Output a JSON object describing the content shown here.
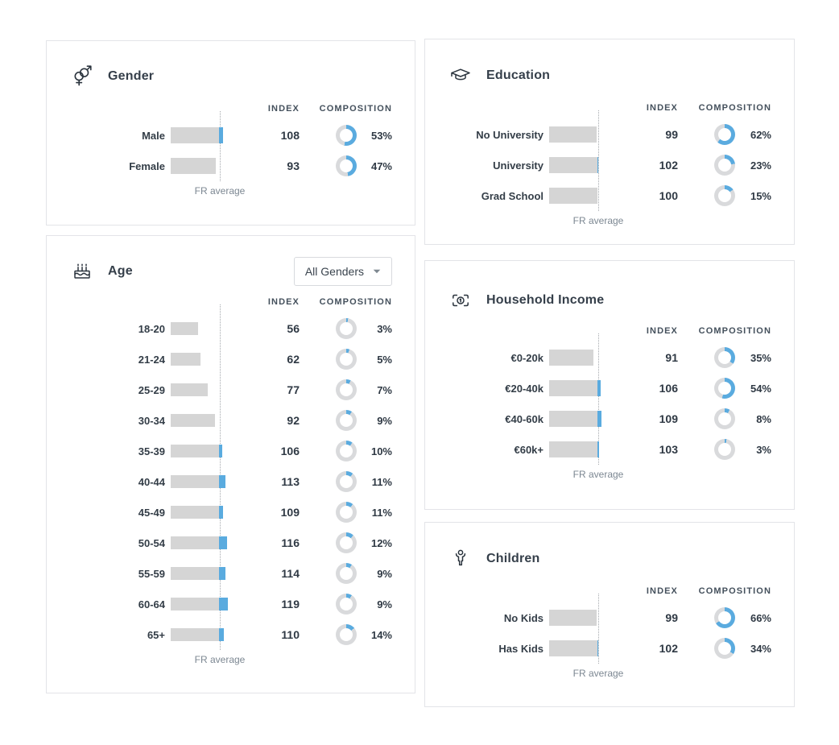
{
  "columns": {
    "index": "INDEX",
    "composition": "COMPOSITION"
  },
  "average_label": "FR average",
  "colors": {
    "accent_blue": "#5aabdf",
    "bar_gray": "#d5d5d5",
    "donut_track": "#d9dadc",
    "title_text": "#353f4a",
    "body_text": "#2f3944",
    "muted_text": "#7c8792",
    "card_border": "#e3e4e8"
  },
  "cards": [
    {
      "id": "gender",
      "title": "Gender",
      "icon": "gender-icon",
      "rows": [
        {
          "label": "Male",
          "index": 108,
          "composition": "53%"
        },
        {
          "label": "Female",
          "index": 93,
          "composition": "47%"
        }
      ]
    },
    {
      "id": "age",
      "title": "Age",
      "icon": "birthday-cake-icon",
      "filter": {
        "value": "All Genders",
        "icon": "chevron-down-icon"
      },
      "rows": [
        {
          "label": "18-20",
          "index": 56,
          "composition": "3%"
        },
        {
          "label": "21-24",
          "index": 62,
          "composition": "5%"
        },
        {
          "label": "25-29",
          "index": 77,
          "composition": "7%"
        },
        {
          "label": "30-34",
          "index": 92,
          "composition": "9%"
        },
        {
          "label": "35-39",
          "index": 106,
          "composition": "10%"
        },
        {
          "label": "40-44",
          "index": 113,
          "composition": "11%"
        },
        {
          "label": "45-49",
          "index": 109,
          "composition": "11%"
        },
        {
          "label": "50-54",
          "index": 116,
          "composition": "12%"
        },
        {
          "label": "55-59",
          "index": 114,
          "composition": "9%"
        },
        {
          "label": "60-64",
          "index": 119,
          "composition": "9%"
        },
        {
          "label": "65+",
          "index": 110,
          "composition": "14%"
        }
      ]
    },
    {
      "id": "education",
      "title": "Education",
      "icon": "graduation-cap-icon",
      "rows": [
        {
          "label": "No University",
          "index": 99,
          "composition": "62%"
        },
        {
          "label": "University",
          "index": 102,
          "composition": "23%"
        },
        {
          "label": "Grad School",
          "index": 100,
          "composition": "15%"
        }
      ]
    },
    {
      "id": "household-income",
      "title": "Household Income",
      "icon": "banknote-icon",
      "rows": [
        {
          "label": "€0-20k",
          "index": 91,
          "composition": "35%"
        },
        {
          "label": "€20-40k",
          "index": 106,
          "composition": "54%"
        },
        {
          "label": "€40-60k",
          "index": 109,
          "composition": "8%"
        },
        {
          "label": "€60k+",
          "index": 103,
          "composition": "3%"
        }
      ]
    },
    {
      "id": "children",
      "title": "Children",
      "icon": "child-icon",
      "rows": [
        {
          "label": "No Kids",
          "index": 99,
          "composition": "66%"
        },
        {
          "label": "Has Kids",
          "index": 102,
          "composition": "34%"
        }
      ]
    }
  ],
  "chart_data": [
    {
      "type": "bar",
      "title": "Gender",
      "orientation": "horizontal",
      "categories": [
        "Male",
        "Female"
      ],
      "series": [
        {
          "name": "Index",
          "values": [
            108,
            93
          ]
        },
        {
          "name": "Composition %",
          "values": [
            53,
            47
          ]
        }
      ],
      "baseline": {
        "value": 100,
        "label": "FR average"
      }
    },
    {
      "type": "bar",
      "title": "Age",
      "orientation": "horizontal",
      "filter": "All Genders",
      "categories": [
        "18-20",
        "21-24",
        "25-29",
        "30-34",
        "35-39",
        "40-44",
        "45-49",
        "50-54",
        "55-59",
        "60-64",
        "65+"
      ],
      "series": [
        {
          "name": "Index",
          "values": [
            56,
            62,
            77,
            92,
            106,
            113,
            109,
            116,
            114,
            119,
            110
          ]
        },
        {
          "name": "Composition %",
          "values": [
            3,
            5,
            7,
            9,
            10,
            11,
            11,
            12,
            9,
            9,
            14
          ]
        }
      ],
      "baseline": {
        "value": 100,
        "label": "FR average"
      }
    },
    {
      "type": "bar",
      "title": "Education",
      "orientation": "horizontal",
      "categories": [
        "No University",
        "University",
        "Grad School"
      ],
      "series": [
        {
          "name": "Index",
          "values": [
            99,
            102,
            100
          ]
        },
        {
          "name": "Composition %",
          "values": [
            62,
            23,
            15
          ]
        }
      ],
      "baseline": {
        "value": 100,
        "label": "FR average"
      }
    },
    {
      "type": "bar",
      "title": "Household Income",
      "orientation": "horizontal",
      "categories": [
        "€0-20k",
        "€20-40k",
        "€40-60k",
        "€60k+"
      ],
      "series": [
        {
          "name": "Index",
          "values": [
            91,
            106,
            109,
            103
          ]
        },
        {
          "name": "Composition %",
          "values": [
            35,
            54,
            8,
            3
          ]
        }
      ],
      "baseline": {
        "value": 100,
        "label": "FR average"
      }
    },
    {
      "type": "bar",
      "title": "Children",
      "orientation": "horizontal",
      "categories": [
        "No Kids",
        "Has Kids"
      ],
      "series": [
        {
          "name": "Index",
          "values": [
            99,
            102
          ]
        },
        {
          "name": "Composition %",
          "values": [
            66,
            34
          ]
        }
      ],
      "baseline": {
        "value": 100,
        "label": "FR average"
      }
    }
  ]
}
